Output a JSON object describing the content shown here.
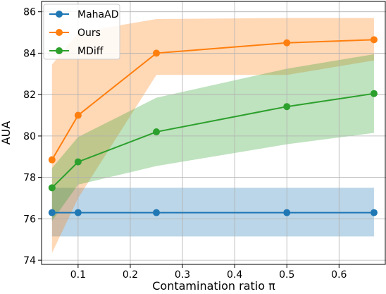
{
  "chart_data": {
    "type": "line",
    "xlabel": "Contamination ratio π",
    "ylabel": "AUA",
    "xlim": [
      0.03,
      0.69
    ],
    "ylim": [
      73.8,
      86.5
    ],
    "xticks": [
      0.1,
      0.2,
      0.3,
      0.4,
      0.5,
      0.6
    ],
    "xtick_labels": [
      "0.1",
      "0.2",
      "0.3",
      "0.4",
      "0.5",
      "0.6"
    ],
    "yticks": [
      74,
      76,
      78,
      80,
      82,
      84,
      86
    ],
    "ytick_labels": [
      "74",
      "76",
      "78",
      "80",
      "82",
      "84",
      "86"
    ],
    "grid": true,
    "legend_position": "top-left",
    "x": [
      0.05,
      0.1,
      0.25,
      0.5,
      0.667
    ],
    "series": [
      {
        "name": "MahaAD",
        "color": "#1f77b4",
        "values": [
          76.3,
          76.3,
          76.3,
          76.3,
          76.3
        ],
        "band_upper": [
          77.5,
          77.5,
          77.5,
          77.5,
          77.5
        ],
        "band_lower": [
          75.15,
          75.15,
          75.15,
          75.15,
          75.15
        ]
      },
      {
        "name": "Ours",
        "color": "#ff7f0e",
        "values": [
          78.85,
          81.0,
          84.0,
          84.5,
          84.65
        ],
        "band_upper": [
          83.45,
          85.0,
          85.65,
          85.7,
          85.7
        ],
        "band_lower": [
          74.35,
          77.0,
          82.95,
          82.95,
          83.65
        ]
      },
      {
        "name": "MDiff",
        "color": "#2ca02c",
        "values": [
          77.5,
          78.75,
          80.2,
          81.42,
          82.05
        ],
        "band_upper": [
          78.45,
          79.95,
          81.85,
          83.25,
          83.95
        ],
        "band_lower": [
          75.9,
          77.65,
          78.55,
          79.6,
          80.15
        ]
      }
    ]
  }
}
